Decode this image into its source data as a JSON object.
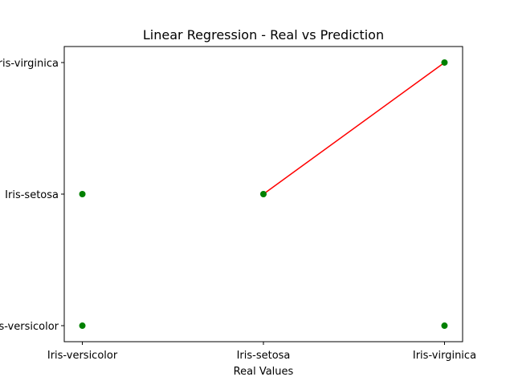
{
  "chart_data": {
    "type": "scatter",
    "title": "Linear Regression - Real vs Prediction",
    "xlabel": "Real Values",
    "ylabel": "",
    "x_categories": [
      "Iris-versicolor",
      "Iris-setosa",
      "Iris-virginica"
    ],
    "y_categories": [
      "Iris-versicolor",
      "Iris-setosa",
      "Iris-virginica"
    ],
    "grid": false,
    "legend": "none",
    "series": [
      {
        "kind": "scatter",
        "color": "#008000",
        "points": [
          {
            "x": "Iris-versicolor",
            "y": "Iris-versicolor"
          },
          {
            "x": "Iris-versicolor",
            "y": "Iris-setosa"
          },
          {
            "x": "Iris-setosa",
            "y": "Iris-setosa"
          },
          {
            "x": "Iris-virginica",
            "y": "Iris-virginica"
          },
          {
            "x": "Iris-virginica",
            "y": "Iris-versicolor"
          }
        ]
      },
      {
        "kind": "line",
        "color": "#ff0000",
        "points": [
          {
            "x": "Iris-setosa",
            "y": "Iris-setosa"
          },
          {
            "x": "Iris-virginica",
            "y": "Iris-virginica"
          }
        ]
      }
    ]
  }
}
